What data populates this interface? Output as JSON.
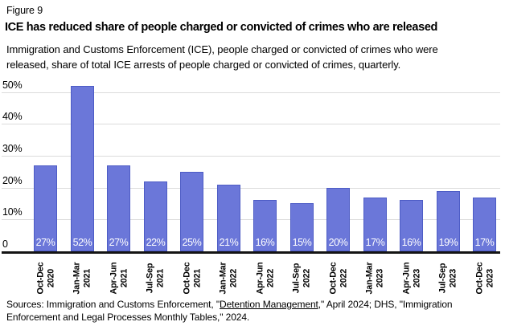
{
  "figure_label": "Figure 9",
  "title": "ICE has reduced share of people charged or convicted of crimes who are released",
  "subtitle": "Immigration and Customs Enforcement (ICE), people charged or convicted of crimes who were released, share of total ICE arrests of people charged or convicted of crimes, quarterly.",
  "colors": {
    "bar_fill": "#6B77D9",
    "bar_border": "#4D5CC5",
    "bar_label_text": "#FFFFFF",
    "gridline": "#DBDBDB",
    "axis_line": "#141414",
    "text": "#000000",
    "background": "#FFFFFF"
  },
  "chart_data": {
    "type": "bar",
    "title": "ICE has reduced share of people charged or convicted of crimes who are released",
    "subtitle": "Immigration and Customs Enforcement (ICE), people charged or convicted of crimes who were released, share of total ICE arrests of people charged or convicted of crimes, quarterly.",
    "categories": [
      {
        "quarter": "Oct-Dec",
        "year": "2020"
      },
      {
        "quarter": "Jan-Mar",
        "year": "2021"
      },
      {
        "quarter": "Apr-Jun",
        "year": "2021"
      },
      {
        "quarter": "Jul-Sep",
        "year": "2021"
      },
      {
        "quarter": "Oct-Dec",
        "year": "2021"
      },
      {
        "quarter": "Jan-Mar",
        "year": "2022"
      },
      {
        "quarter": "Apr-Jun",
        "year": "2022"
      },
      {
        "quarter": "Jul-Sep",
        "year": "2022"
      },
      {
        "quarter": "Oct-Dec",
        "year": "2022"
      },
      {
        "quarter": "Jan-Mar",
        "year": "2023"
      },
      {
        "quarter": "Apr-Jun",
        "year": "2023"
      },
      {
        "quarter": "Jul-Sep",
        "year": "2023"
      },
      {
        "quarter": "Oct-Dec",
        "year": "2023"
      }
    ],
    "values": [
      27,
      52,
      27,
      22,
      25,
      21,
      16,
      15,
      20,
      17,
      16,
      19,
      17
    ],
    "bar_labels": [
      "27%",
      "52%",
      "27%",
      "22%",
      "25%",
      "21%",
      "16%",
      "15%",
      "20%",
      "17%",
      "16%",
      "19%",
      "17%"
    ],
    "y_ticks": [
      {
        "label": "0",
        "value": 0
      },
      {
        "label": "10%",
        "value": 10
      },
      {
        "label": "20%",
        "value": 20
      },
      {
        "label": "30%",
        "value": 30
      },
      {
        "label": "40%",
        "value": 40
      },
      {
        "label": "50%",
        "value": 50
      }
    ],
    "ylim": [
      0,
      52
    ],
    "xlabel": "",
    "ylabel": "",
    "grid": "horizontal",
    "legend": "none"
  },
  "sources": {
    "prefix": "Sources: Immigration and Customs Enforcement, \"",
    "link_text": "Detention Management",
    "suffix": ",\" April 2024; DHS, \"Immigration Enforcement and Legal Processes Monthly Tables,\" 2024."
  }
}
